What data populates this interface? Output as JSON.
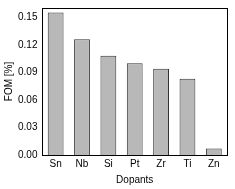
{
  "chart_data": {
    "type": "bar",
    "x_label": "Dopants",
    "y_label": "FOM [%]",
    "categories": [
      "Sn",
      "Nb",
      "Si",
      "Pt",
      "Zr",
      "Ti",
      "Zn"
    ],
    "values": [
      0.155,
      0.126,
      0.108,
      0.1,
      0.094,
      0.083,
      0.007
    ],
    "color": "#b8b8b8",
    "ylim": [
      0,
      0.16
    ],
    "yticks": [
      {
        "value": 0,
        "label": "0.00"
      },
      {
        "value": 0.03,
        "label": "0.03"
      },
      {
        "value": 0.06,
        "label": "0.06"
      },
      {
        "value": 0.09,
        "label": "0.09"
      },
      {
        "value": 0.12,
        "label": "0.12"
      },
      {
        "value": 0.15,
        "label": "0.15"
      }
    ],
    "grid": false
  }
}
